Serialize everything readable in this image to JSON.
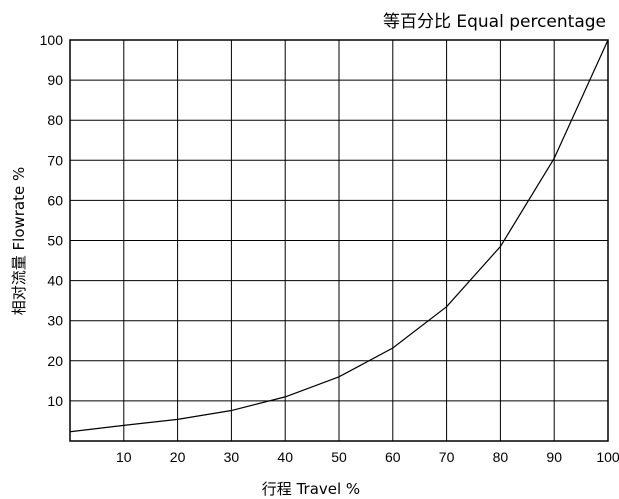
{
  "chart_data": {
    "type": "line",
    "title": "等百分比  Equal percentage",
    "xlabel": "行程 Travel %",
    "ylabel": "相对流量  Flowrate %",
    "xlim": [
      0,
      100
    ],
    "ylim": [
      0,
      100
    ],
    "grid": true,
    "x_ticks": [
      10,
      20,
      30,
      40,
      50,
      60,
      70,
      80,
      90,
      100
    ],
    "y_ticks": [
      10,
      20,
      30,
      40,
      50,
      60,
      70,
      80,
      90,
      100
    ],
    "series": [
      {
        "x": [
          0,
          10,
          20,
          30,
          40,
          50,
          60,
          70,
          80,
          90,
          100
        ],
        "y": [
          2.3,
          3.9,
          5.4,
          7.6,
          11.0,
          16.0,
          23.2,
          33.5,
          48.5,
          70.5,
          100
        ]
      }
    ]
  }
}
